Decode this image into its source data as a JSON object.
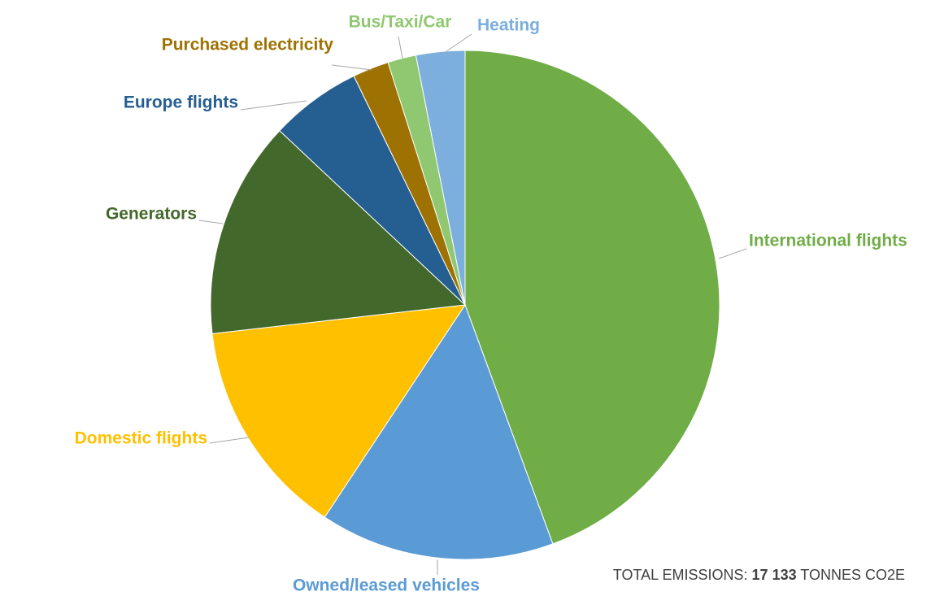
{
  "chart_data": {
    "type": "pie",
    "categories": [
      "International flights",
      "Owned/leased vehicles",
      "Domestic flights",
      "Generators",
      "Europe flights",
      "Purchased electricity",
      "Bus/Taxi/Car",
      "Heating"
    ],
    "values": [
      44.4,
      14.9,
      13.9,
      13.8,
      5.8,
      2.3,
      1.8,
      3.1
    ],
    "colors": [
      "#70ad47",
      "#5b9bd5",
      "#ffc000",
      "#43682b",
      "#255e91",
      "#9e7202",
      "#8fc870",
      "#7cafdd"
    ],
    "annotation": {
      "prefix": "TOTAL EMISSIONS:",
      "value": "17 133",
      "suffix": "TONNES CO2E"
    }
  }
}
